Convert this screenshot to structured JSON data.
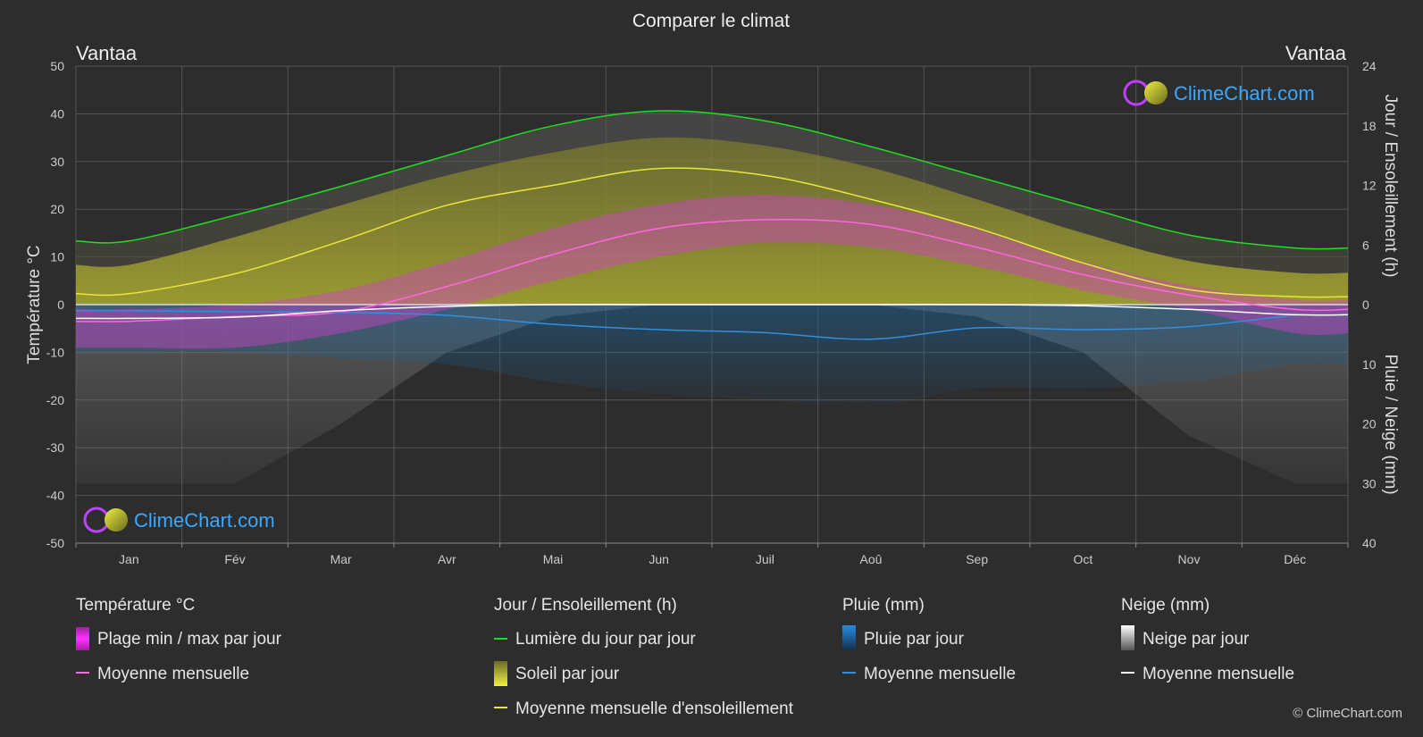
{
  "chart_data": {
    "type": "area",
    "title": "Comparer le climat",
    "location_left": "Vantaa",
    "location_right": "Vantaa",
    "watermark": "ClimeChart.com",
    "copyright": "© ClimeChart.com",
    "y_left_label": "Température °C",
    "y_right_top_label": "Jour / Ensoleillement (h)",
    "y_right_bottom_label": "Pluie / Neige (mm)",
    "y_left_ticks": [
      "50",
      "40",
      "30",
      "20",
      "10",
      "0",
      "-10",
      "-20",
      "-30",
      "-40",
      "-50"
    ],
    "y_right_top_ticks": [
      "24",
      "18",
      "12",
      "6",
      "0"
    ],
    "y_right_bottom_ticks": [
      "10",
      "20",
      "30",
      "40"
    ],
    "ylim_temp": [
      -50,
      50
    ],
    "ylim_sun_h": [
      0,
      24
    ],
    "ylim_precip_mm": [
      0,
      40
    ],
    "months": [
      "Jan",
      "Fév",
      "Mar",
      "Avr",
      "Mai",
      "Jun",
      "Juil",
      "Aoû",
      "Sep",
      "Oct",
      "Nov",
      "Déc"
    ],
    "series": [
      {
        "name": "Lumière du jour par jour",
        "unit": "h",
        "color": "#22dd22",
        "values": [
          6.4,
          9.0,
          11.9,
          15.0,
          18.0,
          19.5,
          18.5,
          15.9,
          12.9,
          9.9,
          7.0,
          5.7
        ]
      },
      {
        "name": "Moyenne mensuelle d'ensoleillement",
        "unit": "h",
        "color": "#e8e83a",
        "values": [
          1.1,
          3.1,
          6.4,
          10.0,
          12.0,
          13.7,
          13.0,
          10.6,
          7.7,
          4.2,
          1.5,
          0.8
        ]
      },
      {
        "name": "Soleil par jour",
        "unit": "h",
        "color": "#c9c93a",
        "values": [
          4.0,
          6.8,
          10.0,
          13.0,
          15.3,
          16.8,
          16.0,
          13.8,
          10.6,
          7.2,
          4.4,
          3.2
        ]
      },
      {
        "name": "Moyenne mensuelle (température)",
        "unit": "°C",
        "color": "#ff66e0",
        "values": [
          -3.5,
          -2.5,
          -1.5,
          3.8,
          10.5,
          16.0,
          17.8,
          16.8,
          12.0,
          6.3,
          2.0,
          -1.0
        ]
      },
      {
        "name": "Plage min / max par jour",
        "unit": "°C",
        "color": "#e040d0",
        "min": [
          -9,
          -9,
          -6,
          -1,
          5,
          10,
          13,
          12,
          8,
          3,
          -1,
          -6
        ],
        "max": [
          -1,
          0,
          3,
          9,
          16,
          21,
          23,
          21,
          16,
          9,
          4,
          1
        ]
      },
      {
        "name": "Moyenne mensuelle (pluie)",
        "unit": "mm",
        "color": "#2f8fe0",
        "values": [
          1.0,
          1.2,
          1.3,
          1.8,
          3.3,
          4.2,
          4.7,
          5.8,
          3.9,
          4.2,
          3.7,
          1.8
        ]
      },
      {
        "name": "Moyenne mensuelle (neige)",
        "unit": "mm",
        "color": "#ffffff",
        "values": [
          2.3,
          2.1,
          1.0,
          0.3,
          0.0,
          0.0,
          0.0,
          0.0,
          0.0,
          0.2,
          0.8,
          1.7
        ]
      }
    ],
    "grid": true,
    "legend_position": "bottom"
  },
  "legend": {
    "temp": {
      "title": "Température °C",
      "item1": "Plage min / max par jour",
      "item2": "Moyenne mensuelle"
    },
    "sun": {
      "title": "Jour / Ensoleillement (h)",
      "item1": "Lumière du jour par jour",
      "item2": "Soleil par jour",
      "item3": "Moyenne mensuelle d'ensoleillement"
    },
    "rain": {
      "title": "Pluie (mm)",
      "item1": "Pluie par jour",
      "item2": "Moyenne mensuelle"
    },
    "snow": {
      "title": "Neige (mm)",
      "item1": "Neige par jour",
      "item2": "Moyenne mensuelle"
    }
  }
}
